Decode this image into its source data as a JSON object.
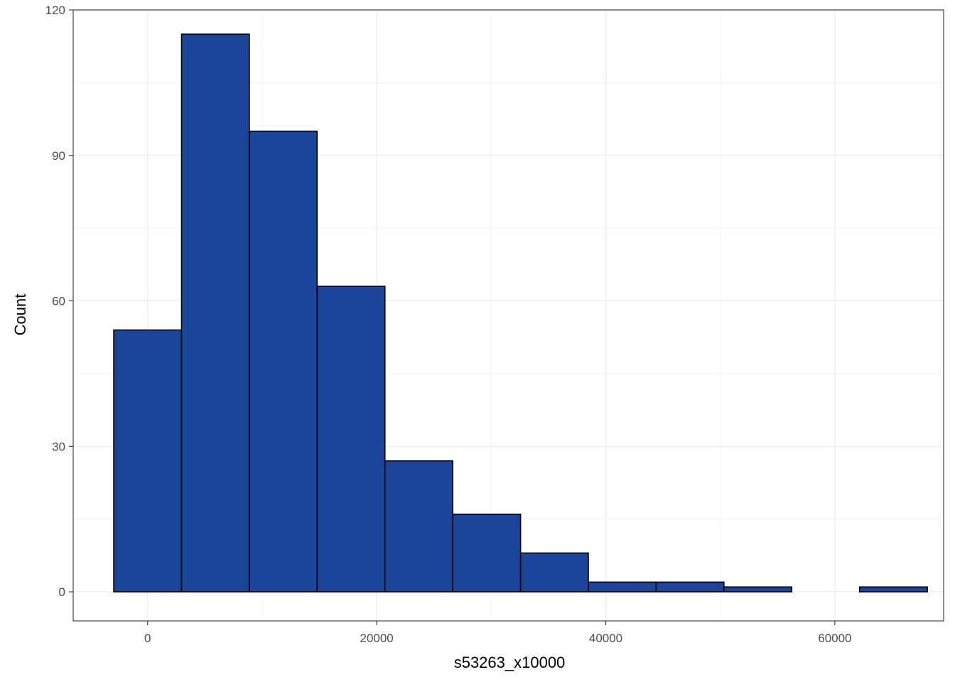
{
  "chart_data": {
    "type": "bar",
    "subtype": "histogram",
    "title": "",
    "xlabel": "s53263_x10000",
    "ylabel": "Count",
    "xlim": [
      -6500,
      69500
    ],
    "ylim": [
      -6,
      120
    ],
    "x_ticks": [
      0,
      20000,
      40000,
      60000
    ],
    "x_tick_labels": [
      "0",
      "20000",
      "40000",
      "60000"
    ],
    "y_ticks": [
      0,
      30,
      60,
      90,
      120
    ],
    "y_tick_labels": [
      "0",
      "30",
      "60",
      "90",
      "120"
    ],
    "grid": true,
    "legend": "none",
    "bins": [
      {
        "x0": -2960,
        "x1": 2960,
        "count": 54
      },
      {
        "x0": 2960,
        "x1": 8880,
        "count": 115
      },
      {
        "x0": 8880,
        "x1": 14800,
        "count": 95
      },
      {
        "x0": 14800,
        "x1": 20720,
        "count": 63
      },
      {
        "x0": 20720,
        "x1": 26640,
        "count": 27
      },
      {
        "x0": 26640,
        "x1": 32560,
        "count": 16
      },
      {
        "x0": 32560,
        "x1": 38480,
        "count": 8
      },
      {
        "x0": 38480,
        "x1": 44400,
        "count": 2
      },
      {
        "x0": 44400,
        "x1": 50320,
        "count": 2
      },
      {
        "x0": 50320,
        "x1": 56240,
        "count": 1
      },
      {
        "x0": 56240,
        "x1": 62160,
        "count": 0
      },
      {
        "x0": 62160,
        "x1": 68080,
        "count": 1
      }
    ],
    "colors": {
      "bar_fill": "#1a4599",
      "bar_stroke": "#000000",
      "grid_major": "#ebebeb",
      "grid_minor": "#f3f3f3",
      "panel_border": "#333333"
    }
  }
}
